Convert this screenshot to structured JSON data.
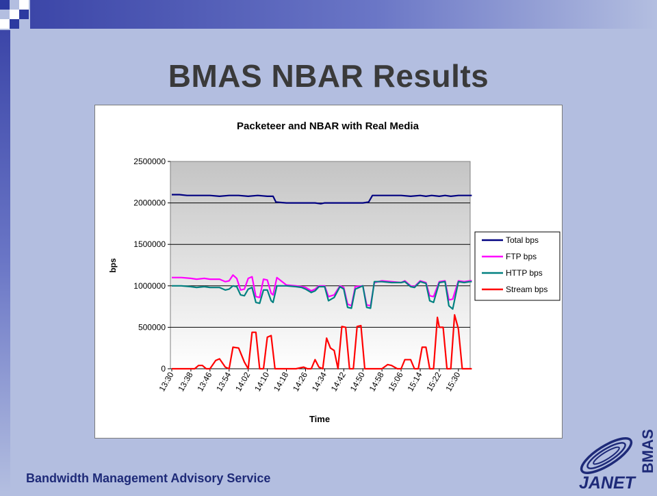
{
  "slide": {
    "title": "BMAS NBAR Results",
    "footer": "Bandwidth Management Advisory Service",
    "logo": {
      "text": "JANET",
      "vertical_text": "BMAS",
      "icon": "janet-swoosh-icon"
    },
    "colors": {
      "background": "#b3bee0",
      "accent": "#3c46a8",
      "title": "#3a3a3a",
      "footer": "#1e2a78"
    }
  },
  "chart_data": {
    "type": "line",
    "title": "Packeteer and NBAR with Real Media",
    "xlabel": "Time",
    "ylabel": "bps",
    "ylim": [
      0,
      2500000
    ],
    "yticks": [
      "0",
      "500000",
      "1000000",
      "1500000",
      "2000000",
      "2500000"
    ],
    "grid": true,
    "legend_position": "right",
    "categories": [
      "13:30",
      "13:38",
      "13:46",
      "13:54",
      "14:02",
      "14:10",
      "14:18",
      "14:26",
      "14:34",
      "14:42",
      "14:50",
      "14:58",
      "15:06",
      "15:14",
      "15:22",
      "15:30"
    ],
    "series": [
      {
        "name": "Total bps",
        "color": "#000080",
        "x": [
          0,
          0.1,
          0.4,
          0.8,
          1.3,
          2,
          2.5,
          3,
          3.5,
          4,
          4.5,
          5,
          5.3,
          5.45,
          6,
          6.5,
          7,
          7.5,
          7.8,
          8,
          8.5,
          9,
          9.5,
          10,
          10.3,
          10.5,
          11,
          11.5,
          12,
          12.5,
          13,
          13.3,
          13.6,
          14,
          14.3,
          14.6,
          15,
          15.4,
          15.7
        ],
        "y": [
          2100000,
          2100000,
          2100000,
          2090000,
          2090000,
          2090000,
          2080000,
          2090000,
          2090000,
          2080000,
          2090000,
          2080000,
          2080000,
          2010000,
          2000000,
          2000000,
          2000000,
          2000000,
          1990000,
          2000000,
          2000000,
          2000000,
          2000000,
          2000000,
          2010000,
          2090000,
          2090000,
          2090000,
          2090000,
          2080000,
          2090000,
          2080000,
          2090000,
          2080000,
          2090000,
          2080000,
          2090000,
          2090000,
          2090000
        ]
      },
      {
        "name": "FTP bps",
        "color": "#ff00ff",
        "x": [
          0,
          0.5,
          1,
          1.3,
          1.7,
          2,
          2.5,
          2.8,
          3,
          3.2,
          3.4,
          3.6,
          3.8,
          4,
          4.2,
          4.4,
          4.6,
          4.8,
          5,
          5.2,
          5.3,
          5.5,
          6,
          6.5,
          6.8,
          7,
          7.3,
          7.5,
          7.7,
          8,
          8.2,
          8.5,
          8.8,
          9,
          9.2,
          9.4,
          9.6,
          10,
          10.2,
          10.4,
          10.6,
          11,
          11.5,
          12,
          12.2,
          12.5,
          12.7,
          13,
          13.3,
          13.5,
          13.7,
          14,
          14.3,
          14.5,
          14.7,
          15,
          15.3,
          15.6,
          15.7
        ],
        "y": [
          1100000,
          1100000,
          1090000,
          1080000,
          1090000,
          1080000,
          1080000,
          1050000,
          1060000,
          1130000,
          1090000,
          950000,
          960000,
          1090000,
          1110000,
          870000,
          860000,
          1080000,
          1070000,
          910000,
          890000,
          1100000,
          1010000,
          1000000,
          990000,
          980000,
          940000,
          960000,
          1000000,
          1000000,
          870000,
          890000,
          1000000,
          980000,
          780000,
          760000,
          990000,
          1000000,
          770000,
          760000,
          1040000,
          1060000,
          1050000,
          1040000,
          1060000,
          1000000,
          990000,
          1060000,
          1040000,
          880000,
          870000,
          1050000,
          1060000,
          830000,
          840000,
          1060000,
          1050000,
          1060000,
          1060000
        ]
      },
      {
        "name": "HTTP bps",
        "color": "#008080",
        "x": [
          0,
          0.5,
          1,
          1.3,
          1.7,
          2,
          2.5,
          2.8,
          3,
          3.2,
          3.4,
          3.6,
          3.8,
          4,
          4.2,
          4.4,
          4.6,
          4.8,
          5,
          5.2,
          5.3,
          5.5,
          6,
          6.5,
          6.8,
          7,
          7.3,
          7.5,
          7.7,
          8,
          8.2,
          8.5,
          8.8,
          9,
          9.2,
          9.4,
          9.6,
          10,
          10.2,
          10.4,
          10.6,
          11,
          11.5,
          12,
          12.2,
          12.5,
          12.7,
          13,
          13.3,
          13.5,
          13.7,
          14,
          14.3,
          14.5,
          14.7,
          15,
          15.3,
          15.6,
          15.7
        ],
        "y": [
          1000000,
          1000000,
          990000,
          980000,
          990000,
          980000,
          980000,
          950000,
          960000,
          1000000,
          990000,
          890000,
          880000,
          960000,
          980000,
          800000,
          790000,
          950000,
          950000,
          820000,
          800000,
          1000000,
          1000000,
          990000,
          980000,
          960000,
          920000,
          940000,
          990000,
          990000,
          820000,
          860000,
          990000,
          960000,
          740000,
          730000,
          960000,
          1000000,
          740000,
          730000,
          1050000,
          1050000,
          1040000,
          1040000,
          1050000,
          990000,
          980000,
          1050000,
          1030000,
          820000,
          800000,
          1040000,
          1050000,
          760000,
          720000,
          1050000,
          1040000,
          1050000,
          1050000
        ]
      },
      {
        "name": "Stream bps",
        "color": "#ff0000",
        "x": [
          0,
          1.2,
          1.4,
          1.6,
          1.8,
          2,
          2.3,
          2.5,
          2.8,
          3,
          3.2,
          3.5,
          3.8,
          4,
          4.2,
          4.4,
          4.6,
          4.8,
          5,
          5.2,
          5.4,
          6.5,
          6.9,
          7.1,
          7.3,
          7.5,
          7.7,
          7.9,
          8.1,
          8.3,
          8.5,
          8.7,
          8.9,
          9.1,
          9.3,
          9.5,
          9.7,
          9.9,
          10.1,
          10.3,
          10.5,
          10.7,
          11,
          11.3,
          11.5,
          11.8,
          12,
          12.2,
          12.5,
          12.7,
          12.9,
          13.1,
          13.3,
          13.5,
          13.7,
          13.9,
          14,
          14.2,
          14.4,
          14.6,
          14.8,
          15,
          15.2,
          15.4,
          15.6,
          15.7
        ],
        "y": [
          0,
          0,
          40000,
          40000,
          0,
          0,
          100000,
          120000,
          20000,
          0,
          260000,
          250000,
          80000,
          0,
          440000,
          440000,
          0,
          0,
          380000,
          400000,
          0,
          0,
          20000,
          0,
          0,
          110000,
          20000,
          0,
          370000,
          250000,
          220000,
          0,
          510000,
          500000,
          0,
          0,
          510000,
          520000,
          0,
          0,
          0,
          0,
          0,
          50000,
          40000,
          0,
          0,
          110000,
          110000,
          0,
          0,
          260000,
          260000,
          0,
          0,
          620000,
          500000,
          500000,
          0,
          0,
          650000,
          480000,
          0,
          0,
          0,
          0
        ]
      }
    ]
  }
}
